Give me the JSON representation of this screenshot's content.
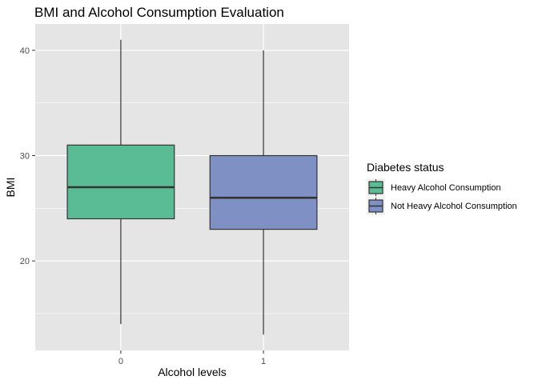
{
  "chart_data": {
    "type": "box",
    "title": "BMI and Alcohol Consumption Evaluation",
    "xlabel": "Alcohol levels",
    "ylabel": "BMI",
    "categories": [
      "0",
      "1"
    ],
    "ylim": [
      11.5,
      42.5
    ],
    "yticks": [
      20,
      30,
      40
    ],
    "grid": true,
    "legend": {
      "title": "Diabetes status",
      "position": "right",
      "entries": [
        "Heavy Alcohol Consumption",
        "Not Heavy Alcohol Consumption"
      ]
    },
    "series": [
      {
        "name": "Heavy Alcohol Consumption",
        "category": "0",
        "color": "#59bc94",
        "whisker_low": 14,
        "q1": 24,
        "median": 27,
        "q3": 31,
        "whisker_high": 41
      },
      {
        "name": "Not Heavy Alcohol Consumption",
        "category": "1",
        "color": "#7f91c4",
        "whisker_low": 13,
        "q1": 23,
        "median": 26,
        "q3": 30,
        "whisker_high": 40
      }
    ],
    "colors": {
      "panel": "#e5e5e5",
      "grid": "#ffffff",
      "outline": "#333333"
    }
  }
}
